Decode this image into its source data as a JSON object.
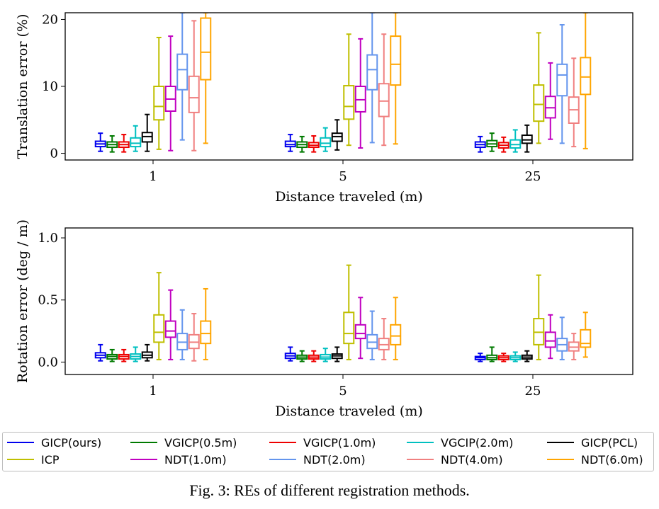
{
  "caption": "Fig. 3: REs of different registration methods.",
  "legend": [
    {
      "name": "GICP(ours)",
      "color": "#0000ee"
    },
    {
      "name": "VGICP(0.5m)",
      "color": "#007a00"
    },
    {
      "name": "VGICP(1.0m)",
      "color": "#ee0000"
    },
    {
      "name": "VGCIP(2.0m)",
      "color": "#00c0c0"
    },
    {
      "name": "GICP(PCL)",
      "color": "#000000"
    },
    {
      "name": "ICP",
      "color": "#bfbf00"
    },
    {
      "name": "NDT(1.0m)",
      "color": "#c000c0"
    },
    {
      "name": "NDT(2.0m)",
      "color": "#6495ed"
    },
    {
      "name": "NDT(4.0m)",
      "color": "#f08080"
    },
    {
      "name": "NDT(6.0m)",
      "color": "#ffa500"
    }
  ],
  "chart_data": [
    {
      "type": "box",
      "xlabel": "Distance traveled (m)",
      "ylabel": "Translation error (%)",
      "ylim": [
        -1,
        21
      ],
      "yticks": [
        "0",
        "10",
        "20"
      ],
      "categories": [
        "1",
        "5",
        "25"
      ],
      "legend_placement": "below",
      "series": [
        {
          "name": "GICP(ours)",
          "boxes": [
            [
              0.3,
              1.0,
              1.4,
              1.8,
              3.0
            ],
            [
              0.3,
              1.0,
              1.3,
              1.8,
              2.8
            ],
            [
              0.2,
              0.9,
              1.3,
              1.7,
              2.5
            ]
          ]
        },
        {
          "name": "VGICP(0.5m)",
          "boxes": [
            [
              0.2,
              0.9,
              1.3,
              1.7,
              2.6
            ],
            [
              0.2,
              0.9,
              1.3,
              1.7,
              2.5
            ],
            [
              0.3,
              1.0,
              1.4,
              1.9,
              3.0
            ]
          ]
        },
        {
          "name": "VGICP(1.0m)",
          "boxes": [
            [
              0.2,
              0.9,
              1.3,
              1.7,
              2.8
            ],
            [
              0.2,
              0.9,
              1.2,
              1.6,
              2.6
            ],
            [
              0.2,
              0.8,
              1.2,
              1.6,
              2.4
            ]
          ]
        },
        {
          "name": "VGCIP(2.0m)",
          "boxes": [
            [
              0.3,
              1.0,
              1.5,
              2.3,
              4.1
            ],
            [
              0.3,
              1.0,
              1.5,
              2.3,
              3.8
            ],
            [
              0.2,
              0.8,
              1.3,
              2.0,
              3.5
            ]
          ]
        },
        {
          "name": "GICP(PCL)",
          "boxes": [
            [
              0.3,
              1.7,
              2.5,
              3.1,
              5.8
            ],
            [
              0.5,
              1.8,
              2.5,
              3.0,
              5.0
            ],
            [
              0.2,
              1.5,
              2.0,
              2.7,
              4.2
            ]
          ]
        },
        {
          "name": "ICP",
          "boxes": [
            [
              0.6,
              5.0,
              7.0,
              10.0,
              17.3
            ],
            [
              1.2,
              5.1,
              7.0,
              10.1,
              17.8
            ],
            [
              1.5,
              4.8,
              7.3,
              10.2,
              18.0
            ]
          ]
        },
        {
          "name": "NDT(1.0m)",
          "boxes": [
            [
              0.4,
              6.3,
              8.1,
              10.0,
              17.5
            ],
            [
              0.8,
              6.2,
              8.0,
              10.0,
              17.1
            ],
            [
              2.1,
              5.3,
              6.8,
              8.5,
              13.5
            ]
          ]
        },
        {
          "name": "NDT(2.0m)",
          "boxes": [
            [
              2.0,
              9.5,
              12.5,
              14.8,
              21.0
            ],
            [
              1.6,
              9.5,
              12.5,
              14.7,
              21.0
            ],
            [
              1.5,
              8.6,
              11.7,
              13.3,
              19.2
            ]
          ]
        },
        {
          "name": "NDT(4.0m)",
          "boxes": [
            [
              0.4,
              6.1,
              8.3,
              11.5,
              19.8
            ],
            [
              1.2,
              5.5,
              7.8,
              10.4,
              17.8
            ],
            [
              1.0,
              4.5,
              6.5,
              8.4,
              14.2
            ]
          ]
        },
        {
          "name": "NDT(6.0m)",
          "boxes": [
            [
              1.5,
              11.0,
              15.1,
              20.2,
              21.0
            ],
            [
              1.4,
              10.2,
              13.3,
              17.5,
              21.0
            ],
            [
              0.7,
              8.8,
              11.4,
              14.3,
              21.0
            ]
          ]
        }
      ]
    },
    {
      "type": "box",
      "xlabel": "Distance traveled (m)",
      "ylabel": "Rotation error (deg / m)",
      "ylim": [
        -0.1,
        1.08
      ],
      "yticks": [
        "0.0",
        "0.5",
        "1.0"
      ],
      "categories": [
        "1",
        "5",
        "25"
      ],
      "legend_placement": "below",
      "series": [
        {
          "name": "GICP(ours)",
          "boxes": [
            [
              0.01,
              0.035,
              0.055,
              0.075,
              0.14
            ],
            [
              0.01,
              0.03,
              0.05,
              0.07,
              0.12
            ],
            [
              0.005,
              0.02,
              0.035,
              0.045,
              0.07
            ]
          ]
        },
        {
          "name": "VGICP(0.5m)",
          "boxes": [
            [
              0.005,
              0.025,
              0.045,
              0.06,
              0.1
            ],
            [
              0.005,
              0.025,
              0.04,
              0.055,
              0.09
            ],
            [
              0.005,
              0.02,
              0.035,
              0.055,
              0.12
            ]
          ]
        },
        {
          "name": "VGICP(1.0m)",
          "boxes": [
            [
              0.005,
              0.025,
              0.045,
              0.06,
              0.1
            ],
            [
              0.005,
              0.025,
              0.04,
              0.055,
              0.09
            ],
            [
              0.005,
              0.02,
              0.035,
              0.05,
              0.07
            ]
          ]
        },
        {
          "name": "VGCIP(2.0m)",
          "boxes": [
            [
              0.005,
              0.025,
              0.045,
              0.065,
              0.12
            ],
            [
              0.005,
              0.025,
              0.04,
              0.06,
              0.11
            ],
            [
              0.005,
              0.02,
              0.035,
              0.05,
              0.08
            ]
          ]
        },
        {
          "name": "GICP(PCL)",
          "boxes": [
            [
              0.01,
              0.035,
              0.055,
              0.08,
              0.14
            ],
            [
              0.005,
              0.03,
              0.05,
              0.065,
              0.12
            ],
            [
              0.005,
              0.025,
              0.04,
              0.055,
              0.09
            ]
          ]
        },
        {
          "name": "ICP",
          "boxes": [
            [
              0.02,
              0.16,
              0.24,
              0.38,
              0.72
            ],
            [
              0.02,
              0.15,
              0.23,
              0.4,
              0.78
            ],
            [
              0.02,
              0.14,
              0.24,
              0.35,
              0.7
            ]
          ]
        },
        {
          "name": "NDT(1.0m)",
          "boxes": [
            [
              0.02,
              0.2,
              0.25,
              0.33,
              0.58
            ],
            [
              0.03,
              0.19,
              0.23,
              0.3,
              0.52
            ],
            [
              0.03,
              0.12,
              0.17,
              0.24,
              0.38
            ]
          ]
        },
        {
          "name": "NDT(2.0m)",
          "boxes": [
            [
              0.02,
              0.1,
              0.16,
              0.23,
              0.42
            ],
            [
              0.02,
              0.11,
              0.16,
              0.22,
              0.41
            ],
            [
              0.02,
              0.09,
              0.14,
              0.19,
              0.36
            ]
          ]
        },
        {
          "name": "NDT(4.0m)",
          "boxes": [
            [
              0.01,
              0.11,
              0.16,
              0.22,
              0.39
            ],
            [
              0.02,
              0.1,
              0.14,
              0.19,
              0.35
            ],
            [
              0.02,
              0.09,
              0.12,
              0.16,
              0.23
            ]
          ]
        },
        {
          "name": "NDT(6.0m)",
          "boxes": [
            [
              0.02,
              0.15,
              0.23,
              0.33,
              0.59
            ],
            [
              0.02,
              0.14,
              0.21,
              0.3,
              0.52
            ],
            [
              0.04,
              0.12,
              0.15,
              0.26,
              0.4
            ]
          ]
        }
      ]
    }
  ]
}
